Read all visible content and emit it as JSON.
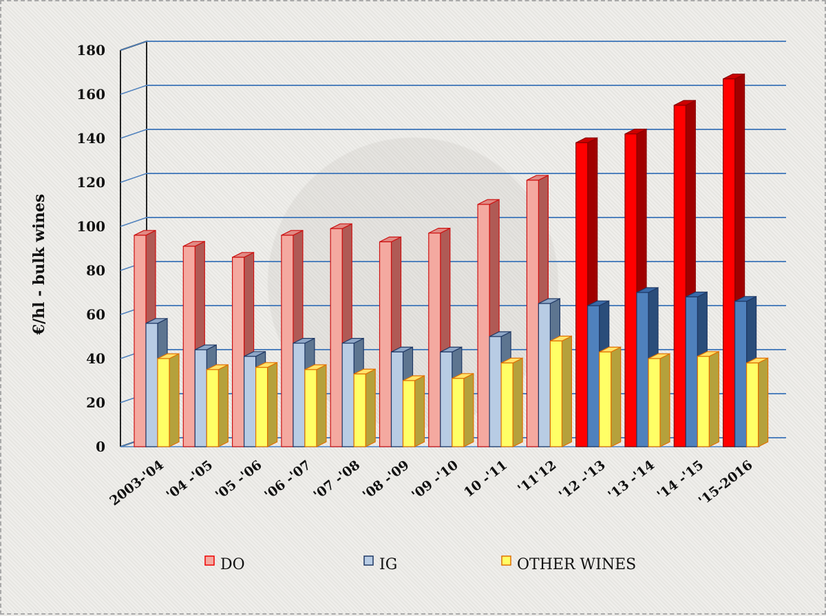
{
  "chart_data": {
    "type": "bar",
    "title": "",
    "xlabel": "",
    "ylabel": "€/hl - bulk wines",
    "ylim": [
      0,
      180
    ],
    "yticks": [
      0,
      20,
      40,
      60,
      80,
      100,
      120,
      140,
      160,
      180
    ],
    "categories": [
      "2003-'04",
      "'04 -'05",
      "'05 -'06",
      "'06 -'07",
      "'07 -'08",
      "'08 -'09",
      "'09 -'10",
      "10 -'11",
      "'11'12",
      "'12 -'13",
      "'13 -'14",
      "'14 -'15",
      "'15-2016"
    ],
    "series": [
      {
        "name": "DO",
        "values": [
          96,
          91,
          86,
          96,
          99,
          93,
          97,
          110,
          121,
          138,
          142,
          155,
          167
        ]
      },
      {
        "name": "IG",
        "values": [
          56,
          44,
          41,
          47,
          47,
          43,
          43,
          50,
          65,
          64,
          70,
          68,
          66
        ]
      },
      {
        "name": "OTHER WINES",
        "values": [
          40,
          35,
          36,
          35,
          33,
          30,
          31,
          38,
          48,
          43,
          40,
          41,
          38
        ]
      }
    ],
    "grid": true,
    "legend_position": "bottom",
    "colors": {
      "do_light": "#f4a9a0",
      "do_dark": "#ff0000",
      "ig_light": "#b8cce4",
      "ig_dark": "#4f81bd",
      "other": "#ffff66",
      "other_side": "#b5a13c",
      "gridline": "#4f81bd"
    },
    "highlight_from_index": 9
  }
}
